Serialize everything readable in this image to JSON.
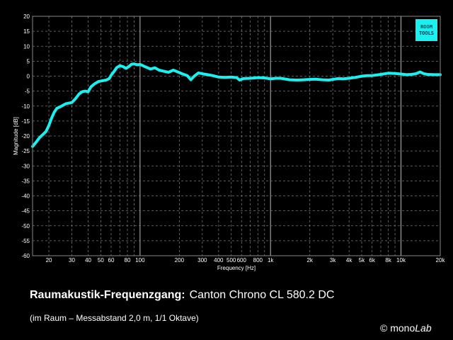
{
  "chart_data": {
    "type": "line",
    "xscale": "log",
    "xlim": [
      15,
      20000
    ],
    "ylim": [
      -60,
      20
    ],
    "grid": true,
    "xlabel": "Frequency [Hz]",
    "ylabel": "Magnitude [dB]",
    "xticks": [
      {
        "v": 20,
        "label": "20"
      },
      {
        "v": 30,
        "label": "30"
      },
      {
        "v": 40,
        "label": "40"
      },
      {
        "v": 50,
        "label": "50"
      },
      {
        "v": 60,
        "label": "60"
      },
      {
        "v": 80,
        "label": "80"
      },
      {
        "v": 100,
        "label": "100"
      },
      {
        "v": 200,
        "label": "200"
      },
      {
        "v": 300,
        "label": "300"
      },
      {
        "v": 400,
        "label": "400"
      },
      {
        "v": 500,
        "label": "500"
      },
      {
        "v": 600,
        "label": "600"
      },
      {
        "v": 800,
        "label": "800"
      },
      {
        "v": 1000,
        "label": "1k"
      },
      {
        "v": 2000,
        "label": "2k"
      },
      {
        "v": 3000,
        "label": "3k"
      },
      {
        "v": 4000,
        "label": "4k"
      },
      {
        "v": 5000,
        "label": "5k"
      },
      {
        "v": 6000,
        "label": "6k"
      },
      {
        "v": 8000,
        "label": "8k"
      },
      {
        "v": 10000,
        "label": "10k"
      },
      {
        "v": 20000,
        "label": "20k"
      }
    ],
    "yticks": [
      20,
      15,
      10,
      5,
      0,
      -5,
      -10,
      -15,
      -20,
      -25,
      -30,
      -35,
      -40,
      -45,
      -50,
      -55,
      -60
    ],
    "series": [
      {
        "color": "#19f0f0",
        "points": [
          [
            15,
            -23.5
          ],
          [
            16,
            -22
          ],
          [
            17,
            -20.5
          ],
          [
            18,
            -19.5
          ],
          [
            19,
            -18.5
          ],
          [
            20,
            -16.5
          ],
          [
            21,
            -14
          ],
          [
            22,
            -12
          ],
          [
            23,
            -10.8
          ],
          [
            25,
            -10
          ],
          [
            27,
            -9.2
          ],
          [
            30,
            -8.8
          ],
          [
            32,
            -7.5
          ],
          [
            34,
            -6
          ],
          [
            36,
            -5.2
          ],
          [
            38,
            -5
          ],
          [
            40,
            -5.2
          ],
          [
            42,
            -3.6
          ],
          [
            45,
            -2.5
          ],
          [
            48,
            -1.8
          ],
          [
            52,
            -1.5
          ],
          [
            55,
            -1.3
          ],
          [
            58,
            -0.8
          ],
          [
            60,
            0.3
          ],
          [
            63,
            1.5
          ],
          [
            66,
            2.8
          ],
          [
            70,
            3.5
          ],
          [
            74,
            3.2
          ],
          [
            78,
            2.6
          ],
          [
            82,
            3.2
          ],
          [
            86,
            4
          ],
          [
            90,
            4.1
          ],
          [
            95,
            3.8
          ],
          [
            100,
            3.9
          ],
          [
            105,
            3.5
          ],
          [
            110,
            3.1
          ],
          [
            120,
            2.4
          ],
          [
            130,
            2.8
          ],
          [
            140,
            2
          ],
          [
            150,
            1.7
          ],
          [
            165,
            1.3
          ],
          [
            180,
            2
          ],
          [
            195,
            1.4
          ],
          [
            210,
            0.8
          ],
          [
            230,
            0.2
          ],
          [
            245,
            -1.2
          ],
          [
            260,
            0
          ],
          [
            280,
            1.1
          ],
          [
            300,
            0.8
          ],
          [
            330,
            0.5
          ],
          [
            360,
            0.2
          ],
          [
            400,
            -0.3
          ],
          [
            450,
            -0.4
          ],
          [
            500,
            -0.3
          ],
          [
            550,
            -0.5
          ],
          [
            580,
            -1.3
          ],
          [
            620,
            -0.8
          ],
          [
            700,
            -0.7
          ],
          [
            800,
            -0.5
          ],
          [
            900,
            -0.6
          ],
          [
            1000,
            -0.9
          ],
          [
            1100,
            -0.7
          ],
          [
            1200,
            -0.7
          ],
          [
            1400,
            -1.2
          ],
          [
            1600,
            -1.3
          ],
          [
            1800,
            -1.2
          ],
          [
            2000,
            -1.1
          ],
          [
            2200,
            -1
          ],
          [
            2500,
            -1.2
          ],
          [
            2800,
            -1.3
          ],
          [
            3000,
            -1.1
          ],
          [
            3300,
            -0.8
          ],
          [
            3600,
            -0.9
          ],
          [
            4000,
            -0.7
          ],
          [
            4500,
            -0.4
          ],
          [
            5000,
            0
          ],
          [
            5500,
            0.2
          ],
          [
            6000,
            0.2
          ],
          [
            7000,
            0.6
          ],
          [
            8000,
            1
          ],
          [
            9000,
            0.9
          ],
          [
            10000,
            0.7
          ],
          [
            11000,
            0.5
          ],
          [
            12000,
            0.6
          ],
          [
            13000,
            0.8
          ],
          [
            14000,
            1.4
          ],
          [
            15000,
            0.8
          ],
          [
            16000,
            0.6
          ],
          [
            18000,
            0.5
          ],
          [
            20000,
            0.5
          ]
        ]
      }
    ]
  },
  "caption": {
    "title": "Raumakustik-Frequenzgang:",
    "subtitle": "Canton Chrono CL 580.2 DC",
    "note": "(im Raum – Messabstand 2,0 m, 1/1 Oktave)"
  },
  "logo": {
    "line1": "ROOM",
    "line2": "TOOLS"
  },
  "copyright": {
    "symbol": "©",
    "prefix": "mono",
    "suffix": "Lab"
  }
}
